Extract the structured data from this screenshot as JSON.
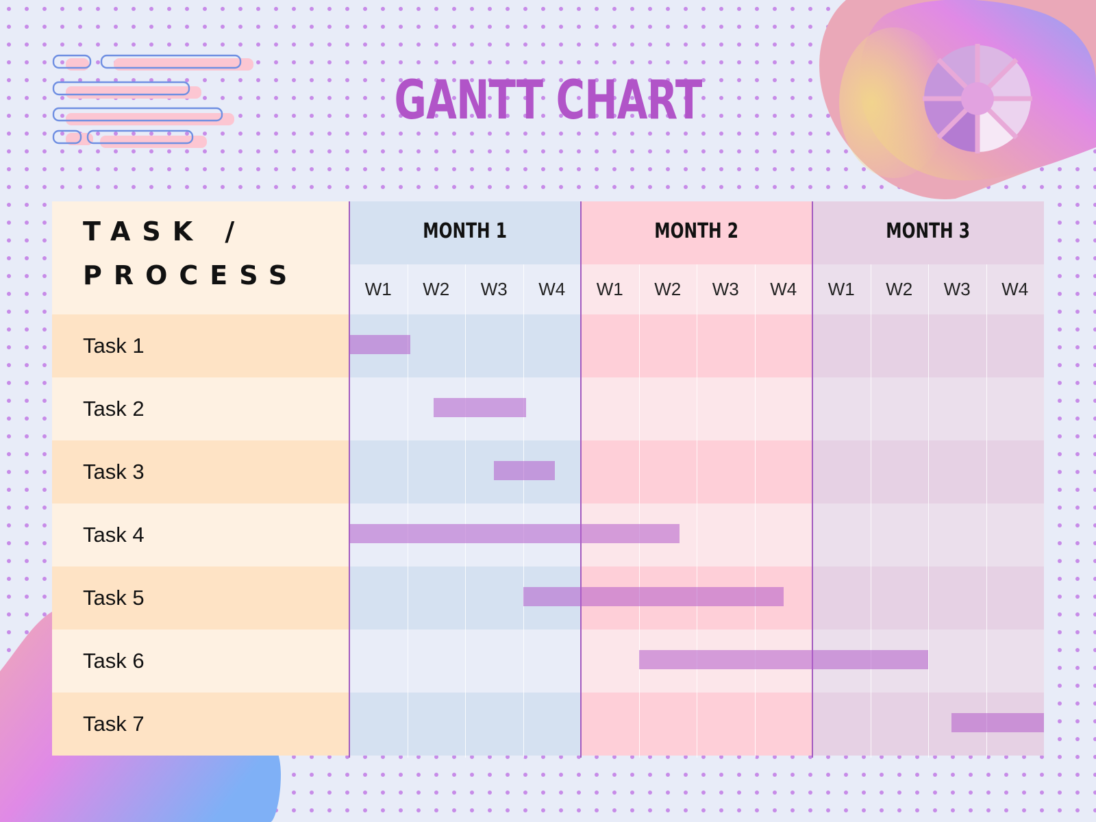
{
  "title": "GANTT CHART",
  "colors": {
    "title": "#b154c8",
    "bar": "#b25ccb",
    "task_header_bg": "#fef1e2",
    "task_row_dark": "#fee3c5",
    "task_row_light": "#fef1e2"
  },
  "chart_data": {
    "type": "gantt",
    "task_header": [
      "TASK /",
      "PROCESS"
    ],
    "months": [
      {
        "label": "MONTH 1",
        "header_color": "#d5e1f1",
        "row_dark": "#d5e1f1",
        "row_light": "#e9edf8"
      },
      {
        "label": "MONTH 2",
        "header_color": "#fecfd8",
        "row_dark": "#fecfd8",
        "row_light": "#fce6ea"
      },
      {
        "label": "MONTH 3",
        "header_color": "#e6d1e4",
        "row_dark": "#e6d1e4",
        "row_light": "#ebdfec"
      }
    ],
    "weeks": [
      "W1",
      "W2",
      "W3",
      "W4"
    ],
    "unit": "week",
    "tasks": [
      {
        "name": "Task 1",
        "start": 0.0,
        "end": 1.05
      },
      {
        "name": "Task 2",
        "start": 1.45,
        "end": 3.05
      },
      {
        "name": "Task 3",
        "start": 2.5,
        "end": 3.55
      },
      {
        "name": "Task 4",
        "start": 0.0,
        "end": 5.7
      },
      {
        "name": "Task 5",
        "start": 3.0,
        "end": 7.5
      },
      {
        "name": "Task 6",
        "start": 5.0,
        "end": 10.0
      },
      {
        "name": "Task 7",
        "start": 10.4,
        "end": 12.0
      }
    ]
  }
}
